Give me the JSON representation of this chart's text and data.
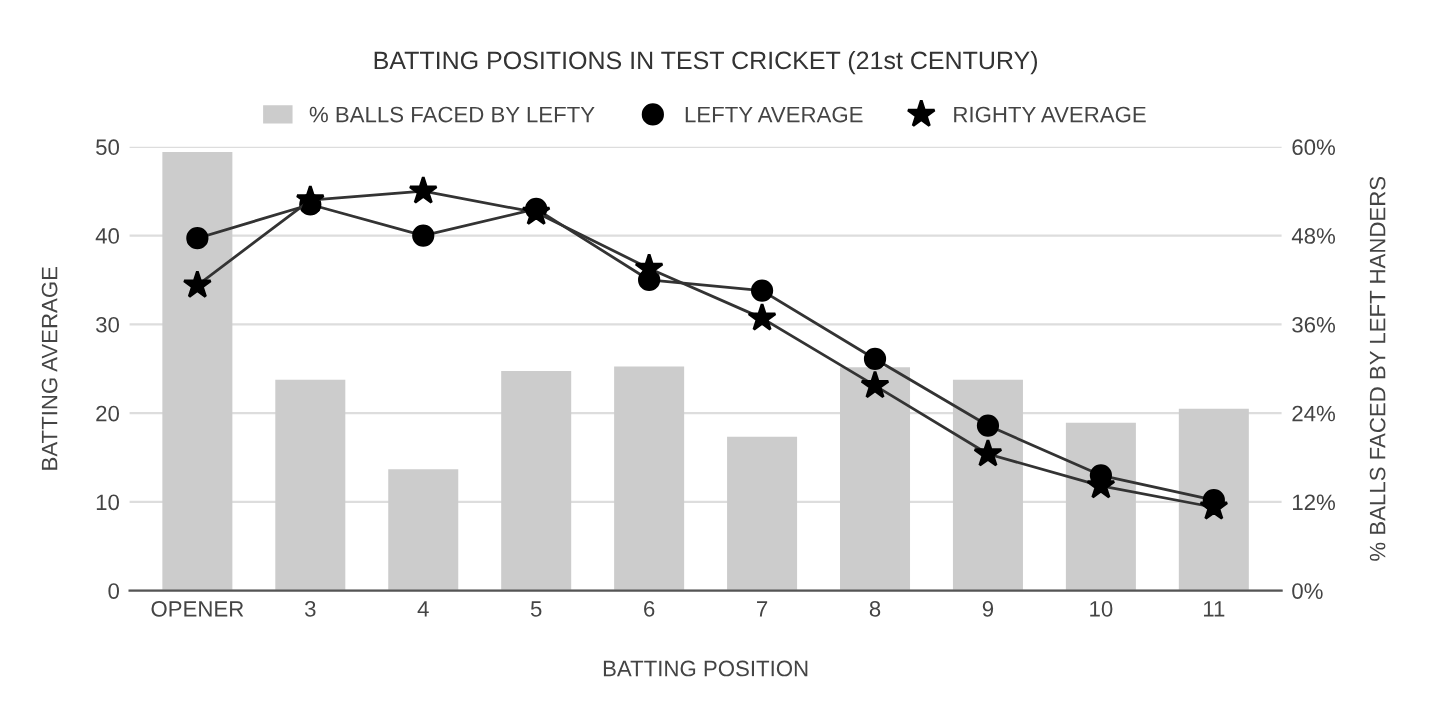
{
  "chart_data": {
    "type": "bar",
    "title": "BATTING POSITIONS IN TEST CRICKET (21st CENTURY)",
    "xlabel": "BATTING POSITION",
    "ylabel": "BATTING AVERAGE",
    "y2label": "% BALLS FACED BY LEFT HANDERS",
    "categories": [
      "OPENER",
      "3",
      "4",
      "5",
      "6",
      "7",
      "8",
      "9",
      "10",
      "11"
    ],
    "series": [
      {
        "name": "% BALLS FACED BY LEFTY",
        "axis": "y2",
        "color": "#cccccc",
        "values": [
          59.3,
          28.5,
          16.4,
          29.7,
          30.3,
          20.8,
          30.2,
          28.5,
          22.7,
          24.6
        ]
      },
      {
        "name": "LEFTY AVERAGE",
        "type": "line",
        "marker": "circle",
        "color": "#333333",
        "values": [
          39.7,
          43.5,
          40,
          43,
          35,
          33.8,
          26.1,
          18.6,
          13,
          10.2
        ]
      },
      {
        "name": "RIGHTY AVERAGE",
        "type": "line",
        "marker": "star",
        "color": "#333333",
        "values": [
          34.4,
          44,
          45,
          42.6,
          36.3,
          30.7,
          23.1,
          15.4,
          11.8,
          9.4
        ]
      }
    ],
    "ylim": [
      0,
      50
    ],
    "yticks": [
      0,
      10,
      20,
      30,
      40,
      50
    ],
    "y2lim": [
      0,
      60
    ],
    "y2ticks": [
      {
        "value": 0,
        "label": "0%"
      },
      {
        "value": 12,
        "label": "12%"
      },
      {
        "value": 24,
        "label": "24%"
      },
      {
        "value": 36,
        "label": "36%"
      },
      {
        "value": 48,
        "label": "48%"
      },
      {
        "value": 60,
        "label": "60%"
      }
    ],
    "grid": "y",
    "legend": "top"
  }
}
